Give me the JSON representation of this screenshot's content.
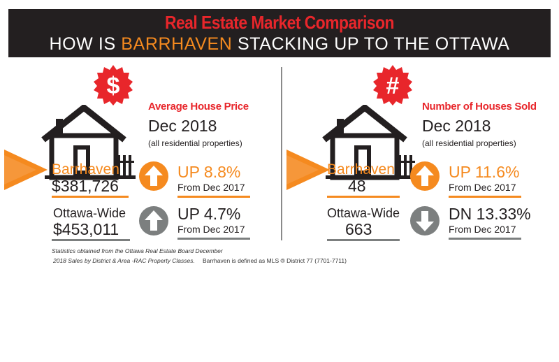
{
  "header": {
    "title": "Real Estate Market Comparison",
    "subtitle_before": "HOW IS ",
    "subtitle_highlight": "BARRHAVEN",
    "subtitle_after": " STACKING UP TO THE OTTAWA MARKET?"
  },
  "left_panel": {
    "seal_symbol": "$",
    "title": "Average House Price",
    "date": "Dec 2018",
    "note": "(all residential properties)",
    "barrhaven": {
      "label": "Barrhaven",
      "value": "$381,726",
      "change": "UP 8.8%",
      "from": "From Dec 2017",
      "arrow": "up-arrow-icon"
    },
    "ottawa": {
      "label": "Ottawa-Wide",
      "value": "$453,011",
      "change": "UP 4.7%",
      "from": "From Dec 2017",
      "arrow": "up-arrow-icon"
    }
  },
  "right_panel": {
    "seal_symbol": "#",
    "title": "Number of Houses Sold",
    "date": "Dec 2018",
    "note": "(all residential properties)",
    "barrhaven": {
      "label": "Barrhaven",
      "value": "48",
      "change": "UP 11.6%",
      "from": "From Dec 2017",
      "arrow": "up-arrow-icon"
    },
    "ottawa": {
      "label": "Ottawa-Wide",
      "value": "663",
      "change": "DN 13.33%",
      "from": "From Dec 2017",
      "arrow": "down-arrow-icon"
    }
  },
  "footnotes": {
    "source_line1": "Statistics obtained from the Ottawa Real Estate Board December",
    "source_line2": "2018 Sales by District & Area -RAC Property Classes.",
    "definition": "Barrhaven is defined as MLS ® District 77 (7701-7711)"
  },
  "colors": {
    "accent_orange": "#f58a1f",
    "accent_red": "#e8262b",
    "header_bg": "#231f20",
    "neutral_grey": "#7c7f7f"
  }
}
